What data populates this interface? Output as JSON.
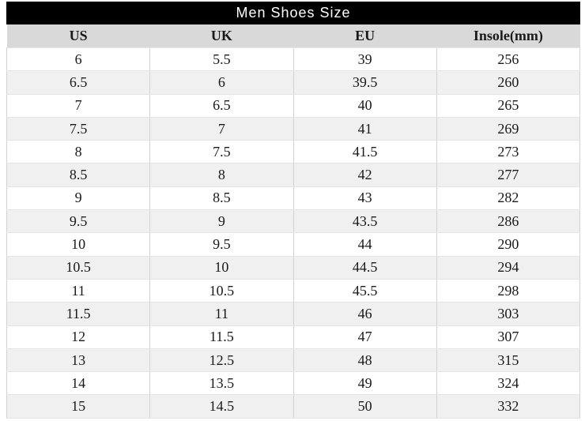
{
  "chart_data": {
    "type": "table",
    "title": "Men Shoes Size",
    "columns": [
      "US",
      "UK",
      "EU",
      "Insole(mm)"
    ],
    "rows": [
      [
        "6",
        "5.5",
        "39",
        "256"
      ],
      [
        "6.5",
        "6",
        "39.5",
        "260"
      ],
      [
        "7",
        "6.5",
        "40",
        "265"
      ],
      [
        "7.5",
        "7",
        "41",
        "269"
      ],
      [
        "8",
        "7.5",
        "41.5",
        "273"
      ],
      [
        "8.5",
        "8",
        "42",
        "277"
      ],
      [
        "9",
        "8.5",
        "43",
        "282"
      ],
      [
        "9.5",
        "9",
        "43.5",
        "286"
      ],
      [
        "10",
        "9.5",
        "44",
        "290"
      ],
      [
        "10.5",
        "10",
        "44.5",
        "294"
      ],
      [
        "11",
        "10.5",
        "45.5",
        "298"
      ],
      [
        "11.5",
        "11",
        "46",
        "303"
      ],
      [
        "12",
        "11.5",
        "47",
        "307"
      ],
      [
        "13",
        "12.5",
        "48",
        "315"
      ],
      [
        "14",
        "13.5",
        "49",
        "324"
      ],
      [
        "15",
        "14.5",
        "50",
        "332"
      ]
    ],
    "layout": {
      "legend": "none",
      "grid": "column-dividers",
      "zebra_striping": true
    }
  },
  "colors": {
    "title_bg": "#000000",
    "title_text": "#ffffff",
    "header_bg": "#d9d9d9",
    "row_bg": "#ffffff",
    "row_alt_bg": "#f0f0f0",
    "border_v": "#d2d2d2",
    "border_h": "#e4e4e4",
    "text": "#1a1a1a"
  }
}
